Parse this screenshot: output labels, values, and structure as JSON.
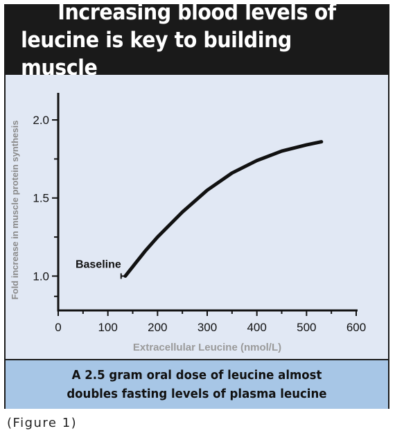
{
  "title_lines": [
    "Increasing blood levels of",
    "leucine is key to building muscle"
  ],
  "caption_lines": [
    "A 2.5 gram oral dose of leucine almost",
    "doubles fasting levels of plasma leucine"
  ],
  "figure_label": "(Figure 1)",
  "colors": {
    "header_bg": "#1a1a1a",
    "plot_bg": "#e1e8f4",
    "caption_bg": "#a7c6e6",
    "line": "#111111",
    "xlabel": "#9a9a9a"
  },
  "chart_data": {
    "type": "line",
    "xlabel": "Extracellular Leucine (nmol/L)",
    "ylabel": "Fold increase in muscle protein synthesis",
    "xlim": [
      0,
      600
    ],
    "ylim": [
      0.78,
      2.2
    ],
    "x_ticks": [
      0,
      100,
      200,
      300,
      400,
      500,
      600
    ],
    "y_ticks": [
      1.0,
      1.5,
      2.0
    ],
    "y_tick_labels": [
      "1.0",
      "1.5",
      "2.0"
    ],
    "grid": false,
    "series": [
      {
        "x": [
          135,
          150,
          175,
          200,
          250,
          300,
          350,
          400,
          450,
          500,
          530
        ],
        "y": [
          1.0,
          1.06,
          1.16,
          1.25,
          1.41,
          1.55,
          1.66,
          1.74,
          1.8,
          1.84,
          1.86
        ]
      }
    ],
    "annotations": [
      {
        "text": "Baseline",
        "x": 135,
        "y": 1.0
      }
    ]
  }
}
